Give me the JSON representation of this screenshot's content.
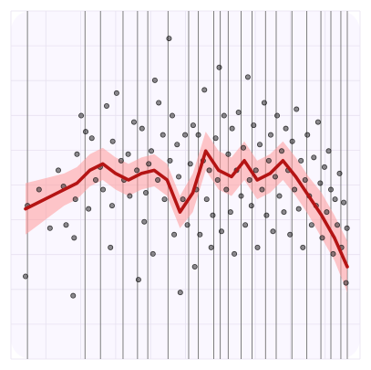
{
  "chart_data": {
    "type": "scatter",
    "title": "",
    "xlabel": "",
    "ylabel": "",
    "xlim": [
      0,
      100
    ],
    "ylim": [
      0,
      100
    ],
    "grid": true,
    "legend": "none",
    "colors": {
      "background": "#faf7ff",
      "grid_minor": "#e7e1f0",
      "vline": "#7d7d7d",
      "point_fill": "#2f2f2f",
      "point_stroke": "#111111",
      "trend": "#b51414",
      "band": "#ff9a9a"
    },
    "vertical_lines_x": [
      0.6,
      18.5,
      23.3,
      30.3,
      34.8,
      38.0,
      44.3,
      50.7,
      53.7,
      58.5,
      60.5,
      63.0,
      67.0,
      70.4,
      74.6,
      77.9,
      82.8,
      87.4,
      91.8,
      94.9,
      98.0,
      100.0
    ],
    "series": [
      {
        "name": "",
        "kind": "points",
        "points": [
          [
            0.0,
            22
          ],
          [
            0.6,
            44
          ],
          [
            4.2,
            49
          ],
          [
            7.6,
            37
          ],
          [
            10.2,
            55
          ],
          [
            11.8,
            50
          ],
          [
            12.6,
            38
          ],
          [
            14.8,
            16
          ],
          [
            15.1,
            34
          ],
          [
            15.5,
            46
          ],
          [
            16.0,
            60
          ],
          [
            17.3,
            72
          ],
          [
            18.7,
            67
          ],
          [
            19.6,
            43
          ],
          [
            20.6,
            65
          ],
          [
            21.8,
            52
          ],
          [
            23.2,
            56
          ],
          [
            24.1,
            49
          ],
          [
            25.2,
            75
          ],
          [
            26.4,
            31
          ],
          [
            26.9,
            44
          ],
          [
            27.1,
            64
          ],
          [
            28.3,
            79
          ],
          [
            29.7,
            58
          ],
          [
            30.6,
            52
          ],
          [
            31.9,
            60
          ],
          [
            32.4,
            47
          ],
          [
            33.7,
            70
          ],
          [
            34.6,
            55
          ],
          [
            35.1,
            21
          ],
          [
            36.2,
            68
          ],
          [
            36.9,
            39
          ],
          [
            37.4,
            48
          ],
          [
            38.3,
            57
          ],
          [
            39.1,
            61
          ],
          [
            39.6,
            29
          ],
          [
            40.2,
            83
          ],
          [
            41.1,
            52
          ],
          [
            41.4,
            76
          ],
          [
            42.7,
            66
          ],
          [
            43.2,
            46
          ],
          [
            44.6,
            96
          ],
          [
            44.9,
            58
          ],
          [
            45.6,
            72
          ],
          [
            46.2,
            35
          ],
          [
            47.1,
            63
          ],
          [
            47.6,
            53
          ],
          [
            48.1,
            17
          ],
          [
            48.9,
            46
          ],
          [
            49.6,
            66
          ],
          [
            50.3,
            38
          ],
          [
            51.2,
            57
          ],
          [
            52.1,
            69
          ],
          [
            52.6,
            25
          ],
          [
            53.1,
            49
          ],
          [
            53.7,
            66
          ],
          [
            54.2,
            35
          ],
          [
            55.2,
            58
          ],
          [
            55.6,
            80
          ],
          [
            56.3,
            46
          ],
          [
            57.1,
            55
          ],
          [
            57.7,
            31
          ],
          [
            58.2,
            41
          ],
          [
            59.1,
            65
          ],
          [
            59.7,
            52
          ],
          [
            60.2,
            87
          ],
          [
            60.9,
            36
          ],
          [
            61.7,
            72
          ],
          [
            62.4,
            49
          ],
          [
            63.0,
            60
          ],
          [
            63.7,
            42
          ],
          [
            64.2,
            68
          ],
          [
            64.9,
            29
          ],
          [
            65.6,
            55
          ],
          [
            66.2,
            73
          ],
          [
            67.0,
            47
          ],
          [
            67.7,
            62
          ],
          [
            68.3,
            38
          ],
          [
            69.1,
            84
          ],
          [
            69.6,
            52
          ],
          [
            70.2,
            44
          ],
          [
            70.9,
            69
          ],
          [
            71.6,
            55
          ],
          [
            72.1,
            31
          ],
          [
            72.8,
            63
          ],
          [
            73.5,
            49
          ],
          [
            74.2,
            76
          ],
          [
            74.9,
            41
          ],
          [
            75.6,
            58
          ],
          [
            76.2,
            66
          ],
          [
            76.9,
            36
          ],
          [
            77.6,
            53
          ],
          [
            78.2,
            72
          ],
          [
            78.9,
            47
          ],
          [
            79.6,
            61
          ],
          [
            80.3,
            42
          ],
          [
            80.9,
            68
          ],
          [
            81.6,
            55
          ],
          [
            82.2,
            35
          ],
          [
            82.9,
            64
          ],
          [
            83.6,
            49
          ],
          [
            84.2,
            74
          ],
          [
            84.9,
            43
          ],
          [
            85.6,
            58
          ],
          [
            86.2,
            31
          ],
          [
            86.9,
            52
          ],
          [
            87.6,
            66
          ],
          [
            88.2,
            47
          ],
          [
            88.9,
            38
          ],
          [
            89.6,
            59
          ],
          [
            90.3,
            44
          ],
          [
            90.9,
            70
          ],
          [
            91.6,
            51
          ],
          [
            92.2,
            34
          ],
          [
            92.9,
            56
          ],
          [
            93.6,
            42
          ],
          [
            94.2,
            61
          ],
          [
            94.9,
            49
          ],
          [
            95.6,
            29
          ],
          [
            96.2,
            46
          ],
          [
            96.9,
            38
          ],
          [
            97.6,
            54
          ],
          [
            98.2,
            31
          ],
          [
            98.9,
            45
          ],
          [
            99.6,
            20
          ],
          [
            99.9,
            37
          ]
        ]
      },
      {
        "name": "",
        "kind": "trend",
        "x": [
          0,
          4,
          8,
          12,
          16,
          20,
          24,
          28,
          32,
          36,
          40,
          44,
          48,
          52,
          56,
          60,
          64,
          68,
          72,
          76,
          80,
          84,
          88,
          92,
          96,
          100
        ],
        "y": [
          43,
          45,
          47,
          49,
          51,
          55,
          57,
          54,
          52,
          54,
          55,
          52,
          42,
          48,
          61,
          55,
          53,
          58,
          52,
          54,
          58,
          53,
          47,
          41,
          34,
          25
        ],
        "band": [
          8,
          7,
          6,
          5,
          5,
          5,
          5,
          5,
          5,
          5,
          5,
          5,
          5,
          6,
          6,
          6,
          6,
          6,
          6,
          6,
          6,
          6,
          6,
          7,
          7,
          8
        ]
      }
    ]
  }
}
